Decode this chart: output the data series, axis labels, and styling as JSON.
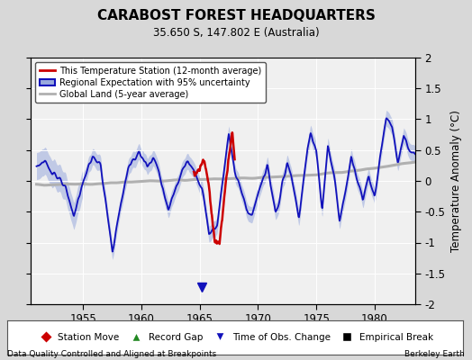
{
  "title": "CARABOST FOREST HEADQUARTERS",
  "subtitle": "35.650 S, 147.802 E (Australia)",
  "ylabel": "Temperature Anomaly (°C)",
  "xlabel_left": "Data Quality Controlled and Aligned at Breakpoints",
  "xlabel_right": "Berkeley Earth",
  "ylim": [
    -2,
    2
  ],
  "xlim": [
    1950.5,
    1983.5
  ],
  "xticks": [
    1955,
    1960,
    1965,
    1970,
    1975,
    1980
  ],
  "yticks": [
    -2,
    -1.5,
    -1,
    -0.5,
    0,
    0.5,
    1,
    1.5,
    2
  ],
  "bg_color": "#d8d8d8",
  "plot_bg_color": "#f0f0f0",
  "blue_line_color": "#1111bb",
  "blue_fill_color": "#99aadd",
  "red_line_color": "#cc0000",
  "gray_line_color": "#b0b0b0",
  "legend1_entries": [
    {
      "label": "This Temperature Station (12-month average)",
      "color": "#cc0000",
      "lw": 2
    },
    {
      "label": "Regional Expectation with 95% uncertainty",
      "color": "#1111bb",
      "lw": 2
    },
    {
      "label": "Global Land (5-year average)",
      "color": "#b0b0b0",
      "lw": 2
    }
  ],
  "legend2_entries": [
    {
      "label": "Station Move",
      "color": "#cc0000",
      "marker": "D"
    },
    {
      "label": "Record Gap",
      "color": "#228822",
      "marker": "^"
    },
    {
      "label": "Time of Obs. Change",
      "color": "#1111bb",
      "marker": "v"
    },
    {
      "label": "Empirical Break",
      "color": "#000000",
      "marker": "s"
    }
  ]
}
